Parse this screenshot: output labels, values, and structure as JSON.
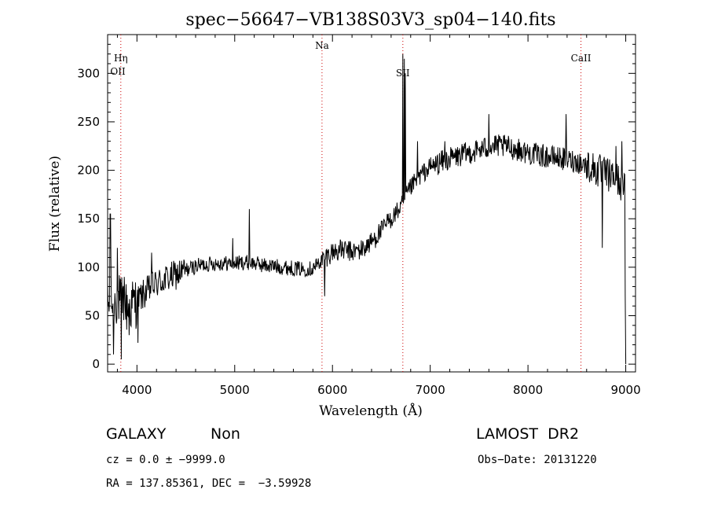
{
  "chart_data": {
    "type": "line",
    "title": "spec−56647−VB138S03V3_sp04−140.fits",
    "xlabel": "Wavelength (Å)",
    "ylabel": "Flux (relative)",
    "xlim": [
      3700,
      9100
    ],
    "ylim": [
      -8,
      340
    ],
    "xticks": [
      4000,
      5000,
      6000,
      7000,
      8000,
      9000
    ],
    "yticks": [
      0,
      50,
      100,
      150,
      200,
      250,
      300
    ],
    "grid": false,
    "line_color": "#000000",
    "marker_color": "#cc0000",
    "spectral_lines": [
      {
        "name": "Hη",
        "wavelength": 3835
      },
      {
        "name": "OII",
        "wavelength": 3727
      },
      {
        "name": "Na",
        "wavelength": 5893
      },
      {
        "name": "SII",
        "wavelength": 6720
      },
      {
        "name": "CaII",
        "wavelength": 8542
      }
    ],
    "series": [
      {
        "anchors": [
          [
            3700,
            60
          ],
          [
            3800,
            68
          ],
          [
            3900,
            58
          ],
          [
            4000,
            65
          ],
          [
            4100,
            75
          ],
          [
            4200,
            83
          ],
          [
            4300,
            88
          ],
          [
            4400,
            92
          ],
          [
            4500,
            97
          ],
          [
            4600,
            101
          ],
          [
            4700,
            103
          ],
          [
            4800,
            104
          ],
          [
            4900,
            104
          ],
          [
            5000,
            104
          ],
          [
            5100,
            105
          ],
          [
            5200,
            104
          ],
          [
            5300,
            102
          ],
          [
            5400,
            101
          ],
          [
            5500,
            100
          ],
          [
            5600,
            99
          ],
          [
            5700,
            98
          ],
          [
            5800,
            99
          ],
          [
            5900,
            108
          ],
          [
            6000,
            116
          ],
          [
            6100,
            118
          ],
          [
            6200,
            116
          ],
          [
            6300,
            118
          ],
          [
            6400,
            126
          ],
          [
            6500,
            138
          ],
          [
            6600,
            150
          ],
          [
            6700,
            162
          ],
          [
            6800,
            182
          ],
          [
            6900,
            195
          ],
          [
            7000,
            203
          ],
          [
            7100,
            208
          ],
          [
            7200,
            212
          ],
          [
            7300,
            215
          ],
          [
            7400,
            218
          ],
          [
            7500,
            221
          ],
          [
            7600,
            224
          ],
          [
            7700,
            225
          ],
          [
            7800,
            224
          ],
          [
            7900,
            221
          ],
          [
            8000,
            218
          ],
          [
            8100,
            216
          ],
          [
            8200,
            214
          ],
          [
            8300,
            213
          ],
          [
            8400,
            211
          ],
          [
            8500,
            209
          ],
          [
            8600,
            205
          ],
          [
            8700,
            200
          ],
          [
            8800,
            196
          ],
          [
            8900,
            192
          ],
          [
            9000,
            180
          ]
        ],
        "features": [
          [
            3727,
            155
          ],
          [
            3760,
            10
          ],
          [
            3800,
            120
          ],
          [
            3840,
            5
          ],
          [
            3870,
            90
          ],
          [
            3920,
            30
          ],
          [
            4010,
            22
          ],
          [
            4150,
            115
          ],
          [
            5150,
            160
          ],
          [
            4980,
            130
          ],
          [
            5920,
            70
          ],
          [
            6560,
            155
          ],
          [
            6720,
            320
          ],
          [
            6735,
            315
          ],
          [
            6745,
            300
          ],
          [
            6870,
            230
          ],
          [
            7150,
            230
          ],
          [
            7600,
            258
          ],
          [
            8390,
            258
          ],
          [
            8760,
            120
          ],
          [
            8900,
            225
          ],
          [
            8960,
            230
          ],
          [
            8995,
            70
          ],
          [
            9000,
            0
          ]
        ]
      }
    ]
  },
  "footer": {
    "object_class": "GALAXY",
    "subclass": "Non",
    "survey": "LAMOST  DR2",
    "redshift": "cz = 0.0 ± −9999.0",
    "obs_date": "Obs−Date: 20131220",
    "coords": "RA = 137.85361, DEC =  −3.59928"
  }
}
